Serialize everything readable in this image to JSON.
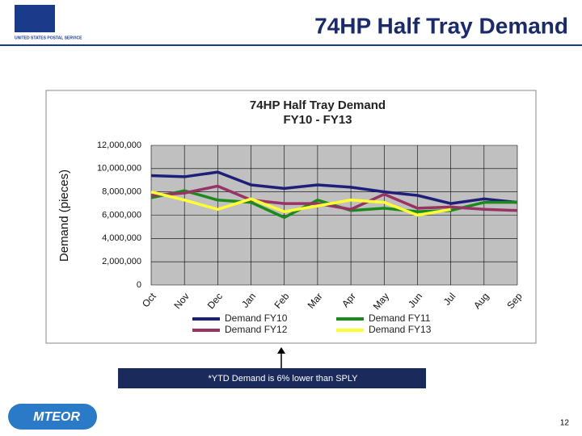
{
  "header": {
    "title": "74HP Half Tray Demand",
    "logo_text": "UNITED STATES POSTAL SERVICE"
  },
  "chart_data": {
    "type": "line",
    "title": [
      "74HP Half Tray Demand",
      "FY10 - FY13"
    ],
    "y_label": "Demand (pieces)",
    "categories": [
      "Oct",
      "Nov",
      "Dec",
      "Jan",
      "Feb",
      "Mar",
      "Apr",
      "May",
      "Jun",
      "Jul",
      "Aug",
      "Sep"
    ],
    "series": [
      {
        "name": "Demand FY10",
        "color": "#1f1f7a",
        "values": [
          9400000,
          9300000,
          9700000,
          8600000,
          8300000,
          8600000,
          8400000,
          8000000,
          7700000,
          7000000,
          7400000,
          7100000
        ]
      },
      {
        "name": "Demand FY11",
        "color": "#1a8a1a",
        "values": [
          7500000,
          8100000,
          7300000,
          7100000,
          5800000,
          7300000,
          6400000,
          6600000,
          6300000,
          6400000,
          7100000,
          7100000
        ]
      },
      {
        "name": "Demand FY12",
        "color": "#993366",
        "values": [
          7700000,
          7900000,
          8500000,
          7300000,
          7000000,
          7000000,
          6500000,
          7800000,
          6600000,
          6700000,
          6500000,
          6400000
        ]
      },
      {
        "name": "Demand FY13",
        "color": "#ffff33",
        "values": [
          8000000,
          7300000,
          6500000,
          7400000,
          6300000,
          6800000,
          7300000,
          7100000,
          6000000,
          6500000,
          null,
          null
        ]
      }
    ],
    "ylim": [
      0,
      12000000
    ],
    "yticks": [
      0,
      {
        "value": 2000000,
        "label": "2,000,000"
      },
      {
        "value": 4000000,
        "label": "4,000,000"
      },
      {
        "value": 6000000,
        "label": "6,000,000"
      },
      {
        "value": 8000000,
        "label": "8,000,000"
      },
      {
        "value": 10000000,
        "label": "10,000,000"
      },
      {
        "value": 12000000,
        "label": "12,000,000"
      }
    ],
    "grid": true
  },
  "callout": "*YTD Demand is 6% lower than SPLY",
  "footer": {
    "logo": "MTEOR",
    "page": "12"
  }
}
